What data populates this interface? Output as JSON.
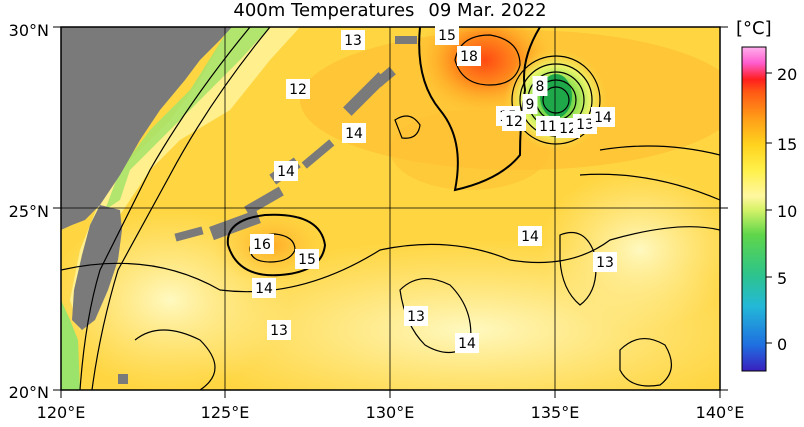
{
  "title": {
    "field": "400m Temperatures",
    "date": "09 Mar. 2022"
  },
  "axes": {
    "lat_labels": [
      "30°N",
      "25°N",
      "20°N"
    ],
    "lon_labels": [
      "120°E",
      "125°E",
      "130°E",
      "135°E",
      "140°E"
    ],
    "lat_range": [
      20,
      30
    ],
    "lon_range": [
      120,
      140
    ]
  },
  "colorbar": {
    "unit_label": "[°C]",
    "ticks": [
      "20",
      "15",
      "10",
      "5",
      "0"
    ],
    "range": [
      -2,
      23
    ],
    "colors": [
      "#3a1fbf",
      "#1f6fe0",
      "#23b8d8",
      "#2ec48a",
      "#5fd64a",
      "#d8f36a",
      "#fff7a0",
      "#fff04a",
      "#ffd21e",
      "#ff9d18",
      "#ff5a14",
      "#ff1e1e",
      "#ff5ccc",
      "#ffb0ee"
    ]
  },
  "contour_labels": [
    "13",
    "15",
    "18",
    "12",
    "8",
    "9",
    "15",
    "12",
    "11",
    "12",
    "13",
    "14",
    "14",
    "14",
    "16",
    "15",
    "14",
    "14",
    "13",
    "13",
    "13",
    "14"
  ],
  "colors": {
    "land": "#7a7a7a",
    "sea_warm": "#ffd642",
    "sea_pale": "#fff7a6",
    "eddy_hot": "#ff6a1a",
    "eddy_cold": "#2fbf58"
  }
}
